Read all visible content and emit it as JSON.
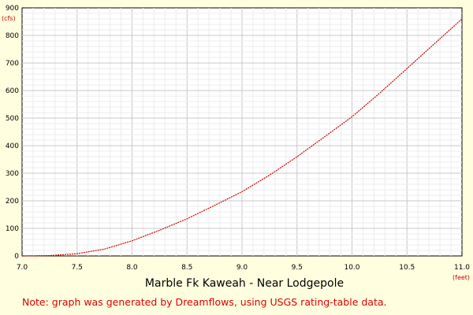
{
  "chart_data": {
    "type": "line",
    "title": "Marble Fk Kaweah - Near Lodgepole",
    "xunit": "(feet)",
    "yunit": "(cfs)",
    "xlim": [
      7.0,
      11.0
    ],
    "ylim": [
      0,
      900
    ],
    "x_ticks": [
      "7.0",
      "7.5",
      "8.0",
      "8.5",
      "9.0",
      "9.5",
      "10.0",
      "10.5",
      "11.0"
    ],
    "y_ticks": [
      "0",
      "100",
      "200",
      "300",
      "400",
      "500",
      "600",
      "700",
      "800",
      "900"
    ],
    "grid": true,
    "colors": {
      "line": "#cc0000",
      "grid": "#d4d4d4",
      "background": "#ffffe0",
      "plot_background": "#ffffff"
    },
    "series": [
      {
        "x": [
          7.0,
          7.25,
          7.5,
          7.75,
          8.0,
          8.25,
          8.5,
          8.75,
          9.0,
          9.25,
          9.5,
          9.75,
          10.0,
          10.25,
          10.5,
          10.75,
          11.0
        ],
        "values": [
          0,
          1,
          8,
          25,
          55,
          93,
          135,
          183,
          233,
          293,
          360,
          432,
          505,
          590,
          680,
          770,
          860
        ]
      }
    ]
  },
  "note": "Note: graph was generated by Dreamflows, using USGS rating-table data."
}
